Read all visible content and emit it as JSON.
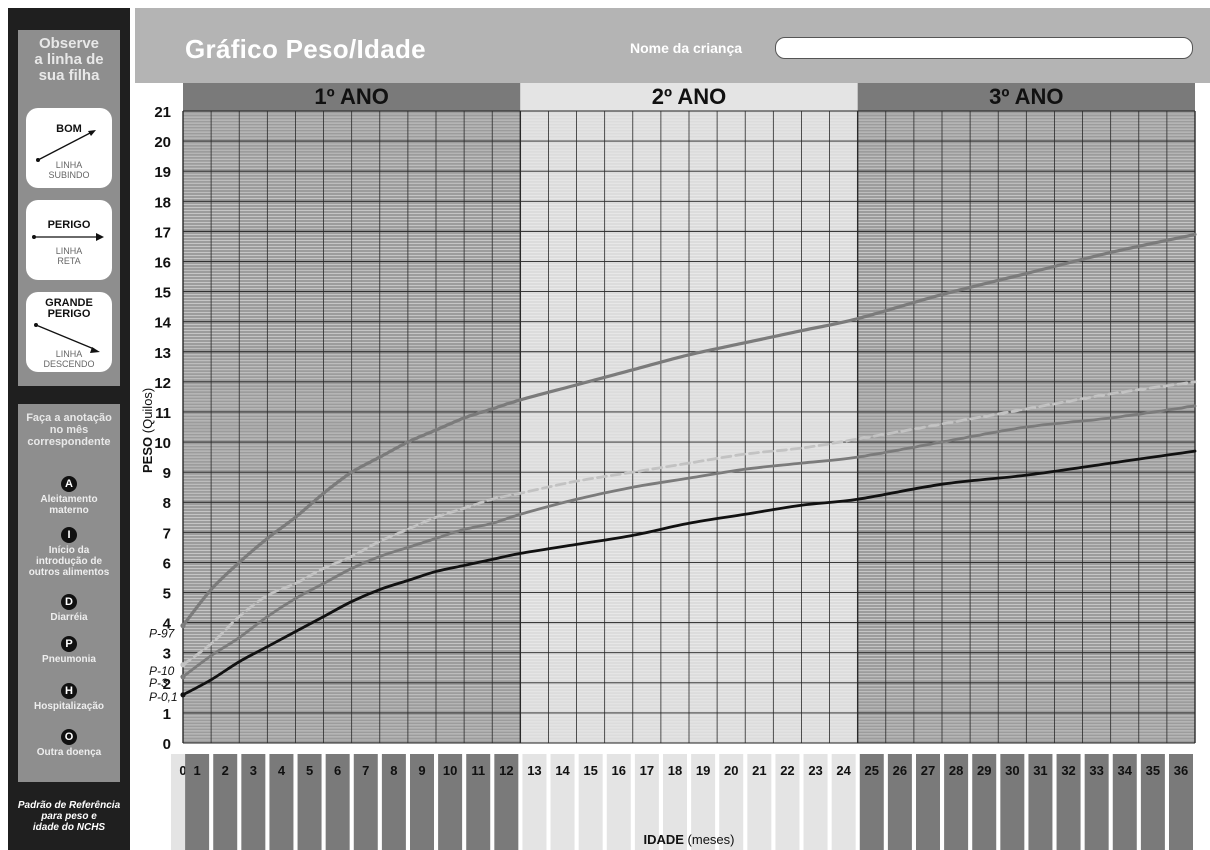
{
  "sidebar": {
    "panel_title": [
      "Observe",
      "a linha de",
      "sua filha"
    ],
    "cards": [
      {
        "label": [
          "BOM"
        ],
        "sub": [
          "LINHA",
          "SUBINDO"
        ],
        "trend": "up"
      },
      {
        "label": [
          "PERIGO"
        ],
        "sub": [
          "LINHA",
          "RETA"
        ],
        "trend": "flat"
      },
      {
        "label": [
          "GRANDE",
          "PERIGO"
        ],
        "sub": [
          "LINHA",
          "DESCENDO"
        ],
        "trend": "down"
      }
    ],
    "instructions": [
      "Faça a anotação",
      "no mês",
      "correspondente"
    ],
    "legend": [
      {
        "letter": "A",
        "label": [
          "Aleitamento",
          "materno"
        ]
      },
      {
        "letter": "I",
        "label": [
          "Início da",
          "introdução de",
          "outros alimentos"
        ]
      },
      {
        "letter": "D",
        "label": [
          "Diarréia"
        ]
      },
      {
        "letter": "P",
        "label": [
          "Pneumonia"
        ]
      },
      {
        "letter": "H",
        "label": [
          "Hospitalização"
        ]
      },
      {
        "letter": "O",
        "label": [
          "Outra doença"
        ]
      }
    ],
    "footnote": [
      "Padrão de Referência",
      "para peso e",
      "idade do NCHS"
    ]
  },
  "header": {
    "title": "Gráfico Peso/Idade",
    "name_label": "Nome da criança",
    "name_value": ""
  },
  "colors": {
    "dark_band": "#7a7a7a",
    "light_band": "#e4e4e4",
    "grid_dark_bg": "#9c9c9c",
    "grid_light_bg": "#dcdcdc",
    "curve_gray": "#7b7b7b",
    "curve_light": "#c2c2c2",
    "curve_black": "#111111"
  },
  "chart_data": {
    "type": "line",
    "title": "Gráfico Peso/Idade",
    "xlabel": "IDADE",
    "xlabel_unit": "(meses)",
    "ylabel": "PESO",
    "ylabel_unit": "(Quilos)",
    "xlim": [
      0,
      36
    ],
    "ylim": [
      0,
      21
    ],
    "x_ticks": [
      0,
      1,
      2,
      3,
      4,
      5,
      6,
      7,
      8,
      9,
      10,
      11,
      12,
      13,
      14,
      15,
      16,
      17,
      18,
      19,
      20,
      21,
      22,
      23,
      24,
      25,
      26,
      27,
      28,
      29,
      30,
      31,
      32,
      33,
      34,
      35,
      36
    ],
    "y_ticks": [
      0,
      1,
      2,
      3,
      4,
      5,
      6,
      7,
      8,
      9,
      10,
      11,
      12,
      13,
      14,
      15,
      16,
      17,
      18,
      19,
      20,
      21
    ],
    "year_bands": [
      {
        "label": "1º ANO",
        "from": 0,
        "to": 12
      },
      {
        "label": "2º ANO",
        "from": 12,
        "to": 24
      },
      {
        "label": "3º ANO",
        "from": 24,
        "to": 36
      }
    ],
    "grid": true,
    "series": [
      {
        "name": "P-97",
        "style": "solid",
        "color": "#7b7b7b",
        "x": [
          0,
          1,
          2,
          3,
          4,
          5,
          6,
          7,
          8,
          9,
          10,
          11,
          12,
          14,
          16,
          18,
          20,
          22,
          24,
          27,
          30,
          33,
          36
        ],
        "y": [
          3.9,
          5.1,
          6.0,
          6.8,
          7.5,
          8.3,
          9.0,
          9.5,
          10.0,
          10.4,
          10.8,
          11.1,
          11.4,
          11.9,
          12.4,
          12.9,
          13.3,
          13.7,
          14.1,
          14.9,
          15.6,
          16.3,
          16.9
        ]
      },
      {
        "name": "P-10",
        "style": "dashed",
        "color": "#c2c2c2",
        "x": [
          0,
          1,
          2,
          3,
          4,
          5,
          6,
          7,
          8,
          9,
          10,
          11,
          12,
          14,
          16,
          18,
          20,
          22,
          24,
          27,
          30,
          33,
          36
        ],
        "y": [
          2.6,
          3.3,
          4.2,
          4.9,
          5.3,
          5.8,
          6.2,
          6.7,
          7.1,
          7.5,
          7.8,
          8.1,
          8.3,
          8.7,
          9.0,
          9.3,
          9.6,
          9.8,
          10.1,
          10.6,
          11.1,
          11.6,
          12.0
        ]
      },
      {
        "name": "P-3",
        "style": "solid",
        "color": "#7b7b7b",
        "x": [
          0,
          1,
          2,
          3,
          4,
          5,
          6,
          7,
          8,
          9,
          10,
          11,
          12,
          14,
          16,
          18,
          20,
          22,
          24,
          27,
          30,
          33,
          36
        ],
        "y": [
          2.2,
          2.9,
          3.5,
          4.2,
          4.8,
          5.3,
          5.8,
          6.2,
          6.5,
          6.8,
          7.1,
          7.3,
          7.6,
          8.1,
          8.5,
          8.8,
          9.1,
          9.3,
          9.5,
          10.0,
          10.5,
          10.8,
          11.2
        ]
      },
      {
        "name": "P-0,1",
        "style": "solid",
        "color": "#111111",
        "x": [
          0,
          1,
          2,
          3,
          4,
          5,
          6,
          7,
          8,
          9,
          10,
          11,
          12,
          14,
          16,
          18,
          20,
          22,
          24,
          27,
          30,
          33,
          36
        ],
        "y": [
          1.6,
          2.1,
          2.7,
          3.2,
          3.7,
          4.2,
          4.7,
          5.1,
          5.4,
          5.7,
          5.9,
          6.1,
          6.3,
          6.6,
          6.9,
          7.3,
          7.6,
          7.9,
          8.1,
          8.6,
          8.9,
          9.3,
          9.7
        ]
      }
    ]
  }
}
